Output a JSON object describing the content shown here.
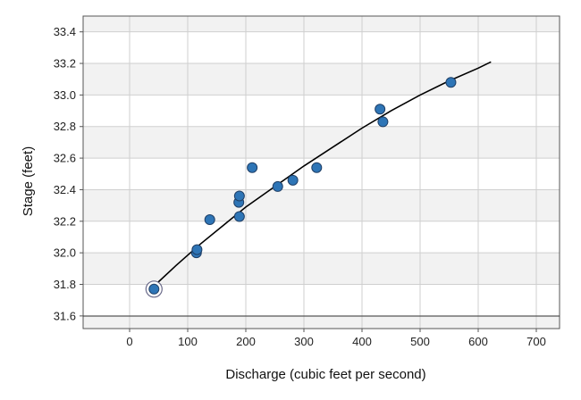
{
  "chart_data": {
    "type": "scatter",
    "title": "",
    "xlabel": "Discharge (cubic feet per second)",
    "ylabel": "Stage (feet)",
    "xlim": [
      -80,
      740
    ],
    "ylim": [
      31.52,
      33.5
    ],
    "xticks": [
      0,
      100,
      200,
      300,
      400,
      500,
      600,
      700
    ],
    "yticks": [
      31.6,
      31.8,
      32.0,
      32.2,
      32.4,
      32.6,
      32.8,
      33.0,
      33.2,
      33.4
    ],
    "grid": true,
    "alternating_bands": true,
    "baseline_y": 31.52,
    "highlighted_point_index": 0,
    "series": [
      {
        "kind": "points",
        "color": "#2e75b6",
        "points": [
          {
            "x": 42,
            "y": 31.77
          },
          {
            "x": 115,
            "y": 32.0
          },
          {
            "x": 116,
            "y": 32.02
          },
          {
            "x": 138,
            "y": 32.21
          },
          {
            "x": 188,
            "y": 32.32
          },
          {
            "x": 189,
            "y": 32.36
          },
          {
            "x": 189,
            "y": 32.23
          },
          {
            "x": 211,
            "y": 32.54
          },
          {
            "x": 255,
            "y": 32.42
          },
          {
            "x": 281,
            "y": 32.46
          },
          {
            "x": 322,
            "y": 32.54
          },
          {
            "x": 431,
            "y": 32.91
          },
          {
            "x": 436,
            "y": 32.83
          },
          {
            "x": 553,
            "y": 33.08
          }
        ]
      },
      {
        "kind": "curve",
        "color": "#000000",
        "points": [
          {
            "x": 45,
            "y": 31.8
          },
          {
            "x": 80,
            "y": 31.92
          },
          {
            "x": 120,
            "y": 32.05
          },
          {
            "x": 160,
            "y": 32.17
          },
          {
            "x": 200,
            "y": 32.29
          },
          {
            "x": 250,
            "y": 32.42
          },
          {
            "x": 300,
            "y": 32.55
          },
          {
            "x": 350,
            "y": 32.67
          },
          {
            "x": 400,
            "y": 32.79
          },
          {
            "x": 450,
            "y": 32.9
          },
          {
            "x": 500,
            "y": 33.0
          },
          {
            "x": 550,
            "y": 33.09
          },
          {
            "x": 600,
            "y": 33.17
          },
          {
            "x": 622,
            "y": 33.21
          }
        ]
      }
    ]
  }
}
